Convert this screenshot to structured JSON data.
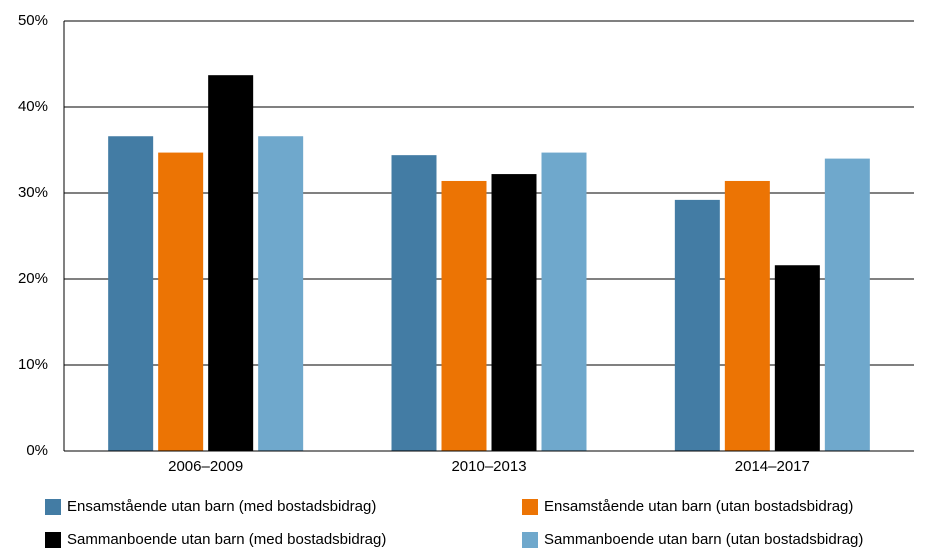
{
  "chart_data": {
    "type": "bar",
    "categories": [
      "2006–2009",
      "2010–2013",
      "2014–2017"
    ],
    "series": [
      {
        "name": "Ensamstående utan barn (med bostadsbidrag)",
        "color": "#437ca4",
        "values": [
          36.6,
          34.4,
          29.2
        ]
      },
      {
        "name": "Ensamstående utan barn (utan bostadsbidrag)",
        "color": "#ec7404",
        "values": [
          34.7,
          31.4,
          31.4
        ]
      },
      {
        "name": "Sammanboende utan barn (med bostadsbidrag)",
        "color": "#000000",
        "values": [
          43.7,
          32.2,
          21.6
        ]
      },
      {
        "name": "Sammanboende utan barn (utan bostadsbidrag)",
        "color": "#6fa8cc",
        "values": [
          36.6,
          34.7,
          34.0
        ]
      }
    ],
    "ylim": [
      0,
      50
    ],
    "yticks": [
      {
        "value": 0,
        "label": "0%"
      },
      {
        "value": 10,
        "label": "10%"
      },
      {
        "value": 20,
        "label": "20%"
      },
      {
        "value": 30,
        "label": "30%"
      },
      {
        "value": 40,
        "label": "40%"
      },
      {
        "value": 50,
        "label": "50%"
      }
    ],
    "grid": true
  }
}
